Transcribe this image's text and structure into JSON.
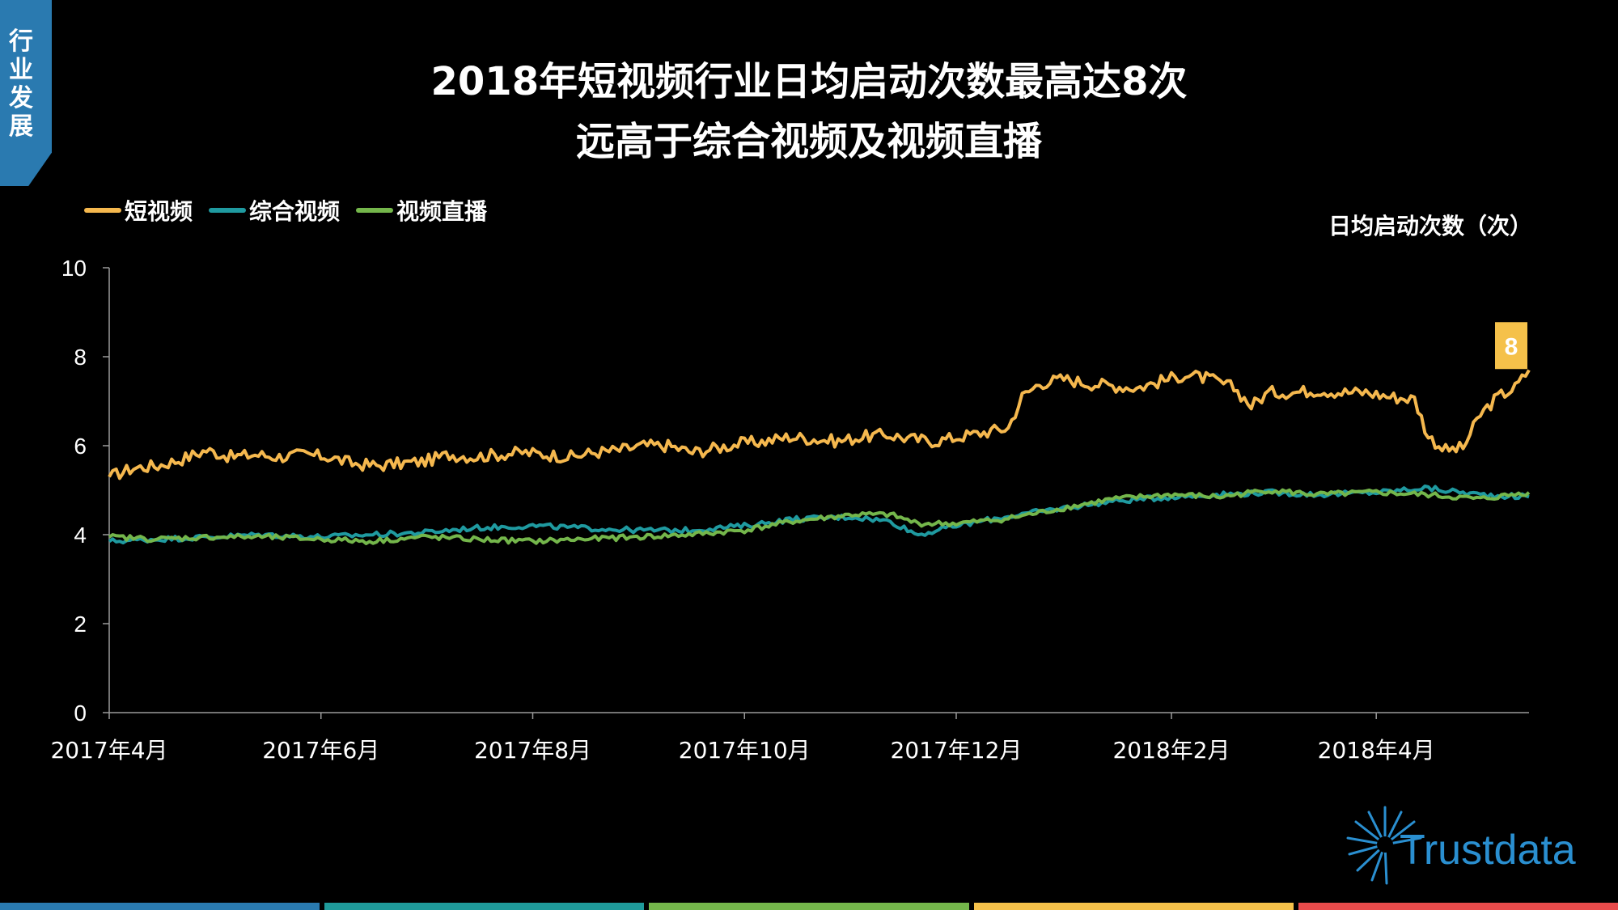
{
  "side_tab": "行业发展",
  "title_line1": "2018年短视频行业日均启动次数最高达8次",
  "title_line2": "远高于综合视频及视频直播",
  "unit_label": "日均启动次数（次）",
  "logo_text": "Trustdata",
  "bottom_bar_colors": [
    "#2a7ab0",
    "#1f9a9a",
    "#74b64b",
    "#f5c14a",
    "#e84b4b"
  ],
  "chart_data": {
    "type": "line",
    "title": "2018年短视频行业日均启动次数最高达8次 远高于综合视频及视频直播",
    "ylabel": "日均启动次数（次）",
    "xlabel": "",
    "ylim": [
      0,
      10
    ],
    "yticks": [
      "0",
      "2",
      "4",
      "6",
      "8",
      "10"
    ],
    "x_range": [
      "2017-04-01",
      "2018-05-15"
    ],
    "xticks": [
      {
        "date": "2017-04-01",
        "label": "2017年4月"
      },
      {
        "date": "2017-06-01",
        "label": "2017年6月"
      },
      {
        "date": "2017-08-01",
        "label": "2017年8月"
      },
      {
        "date": "2017-10-01",
        "label": "2017年10月"
      },
      {
        "date": "2017-12-01",
        "label": "2017年12月"
      },
      {
        "date": "2018-02-01",
        "label": "2018年2月"
      },
      {
        "date": "2018-04-01",
        "label": "2018年4月"
      }
    ],
    "legend_position": "top-left",
    "grid": false,
    "series": [
      {
        "name": "短视频",
        "color": "#f5b84e",
        "points": [
          [
            "2017-04-01",
            5.3
          ],
          [
            "2017-04-08",
            5.5
          ],
          [
            "2017-04-15",
            5.55
          ],
          [
            "2017-04-22",
            5.7
          ],
          [
            "2017-04-29",
            5.9
          ],
          [
            "2017-05-06",
            5.75
          ],
          [
            "2017-05-13",
            5.8
          ],
          [
            "2017-05-20",
            5.75
          ],
          [
            "2017-05-27",
            5.8
          ],
          [
            "2017-06-03",
            5.75
          ],
          [
            "2017-06-10",
            5.6
          ],
          [
            "2017-06-17",
            5.55
          ],
          [
            "2017-06-24",
            5.6
          ],
          [
            "2017-07-01",
            5.65
          ],
          [
            "2017-07-08",
            5.8
          ],
          [
            "2017-07-15",
            5.75
          ],
          [
            "2017-07-22",
            5.8
          ],
          [
            "2017-07-29",
            5.85
          ],
          [
            "2017-08-05",
            5.8
          ],
          [
            "2017-08-12",
            5.75
          ],
          [
            "2017-08-19",
            5.85
          ],
          [
            "2017-08-26",
            5.9
          ],
          [
            "2017-09-02",
            6.0
          ],
          [
            "2017-09-09",
            6.0
          ],
          [
            "2017-09-16",
            5.85
          ],
          [
            "2017-09-23",
            5.95
          ],
          [
            "2017-09-30",
            6.05
          ],
          [
            "2017-10-07",
            6.1
          ],
          [
            "2017-10-14",
            6.2
          ],
          [
            "2017-10-21",
            6.15
          ],
          [
            "2017-10-28",
            6.1
          ],
          [
            "2017-11-04",
            6.2
          ],
          [
            "2017-11-11",
            6.25
          ],
          [
            "2017-11-18",
            6.15
          ],
          [
            "2017-11-25",
            6.1
          ],
          [
            "2017-12-02",
            6.2
          ],
          [
            "2017-12-09",
            6.3
          ],
          [
            "2017-12-16",
            6.4
          ],
          [
            "2017-12-20",
            7.1
          ],
          [
            "2017-12-25",
            7.4
          ],
          [
            "2018-01-01",
            7.5
          ],
          [
            "2018-01-08",
            7.4
          ],
          [
            "2018-01-15",
            7.35
          ],
          [
            "2018-01-22",
            7.3
          ],
          [
            "2018-01-29",
            7.45
          ],
          [
            "2018-02-05",
            7.6
          ],
          [
            "2018-02-12",
            7.5
          ],
          [
            "2018-02-19",
            7.3
          ],
          [
            "2018-02-24",
            6.9
          ],
          [
            "2018-03-01",
            7.2
          ],
          [
            "2018-03-08",
            7.2
          ],
          [
            "2018-03-15",
            7.25
          ],
          [
            "2018-03-22",
            7.2
          ],
          [
            "2018-03-29",
            7.2
          ],
          [
            "2018-04-05",
            7.1
          ],
          [
            "2018-04-12",
            7.05
          ],
          [
            "2018-04-16",
            6.2
          ],
          [
            "2018-04-21",
            5.9
          ],
          [
            "2018-04-26",
            5.95
          ],
          [
            "2018-05-01",
            6.7
          ],
          [
            "2018-05-06",
            7.1
          ],
          [
            "2018-05-11",
            7.3
          ],
          [
            "2018-05-15",
            7.7
          ]
        ]
      },
      {
        "name": "综合视频",
        "color": "#1f9aa0",
        "points": [
          [
            "2017-04-01",
            3.85
          ],
          [
            "2017-04-15",
            3.9
          ],
          [
            "2017-05-01",
            3.95
          ],
          [
            "2017-05-15",
            4.0
          ],
          [
            "2017-06-01",
            3.95
          ],
          [
            "2017-06-15",
            4.0
          ],
          [
            "2017-07-01",
            4.05
          ],
          [
            "2017-07-15",
            4.15
          ],
          [
            "2017-08-01",
            4.2
          ],
          [
            "2017-08-15",
            4.15
          ],
          [
            "2017-09-01",
            4.1
          ],
          [
            "2017-09-15",
            4.1
          ],
          [
            "2017-10-01",
            4.2
          ],
          [
            "2017-10-15",
            4.35
          ],
          [
            "2017-11-01",
            4.4
          ],
          [
            "2017-11-12",
            4.3
          ],
          [
            "2017-11-20",
            4.0
          ],
          [
            "2017-12-01",
            4.2
          ],
          [
            "2017-12-15",
            4.4
          ],
          [
            "2018-01-01",
            4.6
          ],
          [
            "2018-01-15",
            4.75
          ],
          [
            "2018-02-01",
            4.85
          ],
          [
            "2018-02-15",
            4.9
          ],
          [
            "2018-03-01",
            4.95
          ],
          [
            "2018-03-15",
            4.9
          ],
          [
            "2018-04-01",
            4.95
          ],
          [
            "2018-04-15",
            5.05
          ],
          [
            "2018-05-01",
            4.9
          ],
          [
            "2018-05-15",
            4.85
          ]
        ]
      },
      {
        "name": "视频直播",
        "color": "#74b64b",
        "points": [
          [
            "2017-04-01",
            3.95
          ],
          [
            "2017-04-15",
            3.9
          ],
          [
            "2017-05-01",
            3.95
          ],
          [
            "2017-05-15",
            3.95
          ],
          [
            "2017-06-01",
            3.9
          ],
          [
            "2017-06-15",
            3.85
          ],
          [
            "2017-07-01",
            3.95
          ],
          [
            "2017-07-15",
            3.9
          ],
          [
            "2017-08-01",
            3.85
          ],
          [
            "2017-08-15",
            3.9
          ],
          [
            "2017-09-01",
            3.95
          ],
          [
            "2017-09-15",
            4.0
          ],
          [
            "2017-10-01",
            4.1
          ],
          [
            "2017-10-15",
            4.3
          ],
          [
            "2017-11-01",
            4.45
          ],
          [
            "2017-11-12",
            4.45
          ],
          [
            "2017-11-20",
            4.25
          ],
          [
            "2017-12-01",
            4.25
          ],
          [
            "2017-12-15",
            4.35
          ],
          [
            "2018-01-01",
            4.6
          ],
          [
            "2018-01-15",
            4.8
          ],
          [
            "2018-02-01",
            4.9
          ],
          [
            "2018-02-15",
            4.85
          ],
          [
            "2018-03-01",
            5.0
          ],
          [
            "2018-03-15",
            4.9
          ],
          [
            "2018-04-01",
            4.95
          ],
          [
            "2018-04-15",
            4.9
          ],
          [
            "2018-05-01",
            4.8
          ],
          [
            "2018-05-15",
            4.95
          ]
        ]
      }
    ],
    "annotation": {
      "series": "短视频",
      "label": "8",
      "date": "2018-05-15",
      "color": "#f5c14a"
    }
  }
}
